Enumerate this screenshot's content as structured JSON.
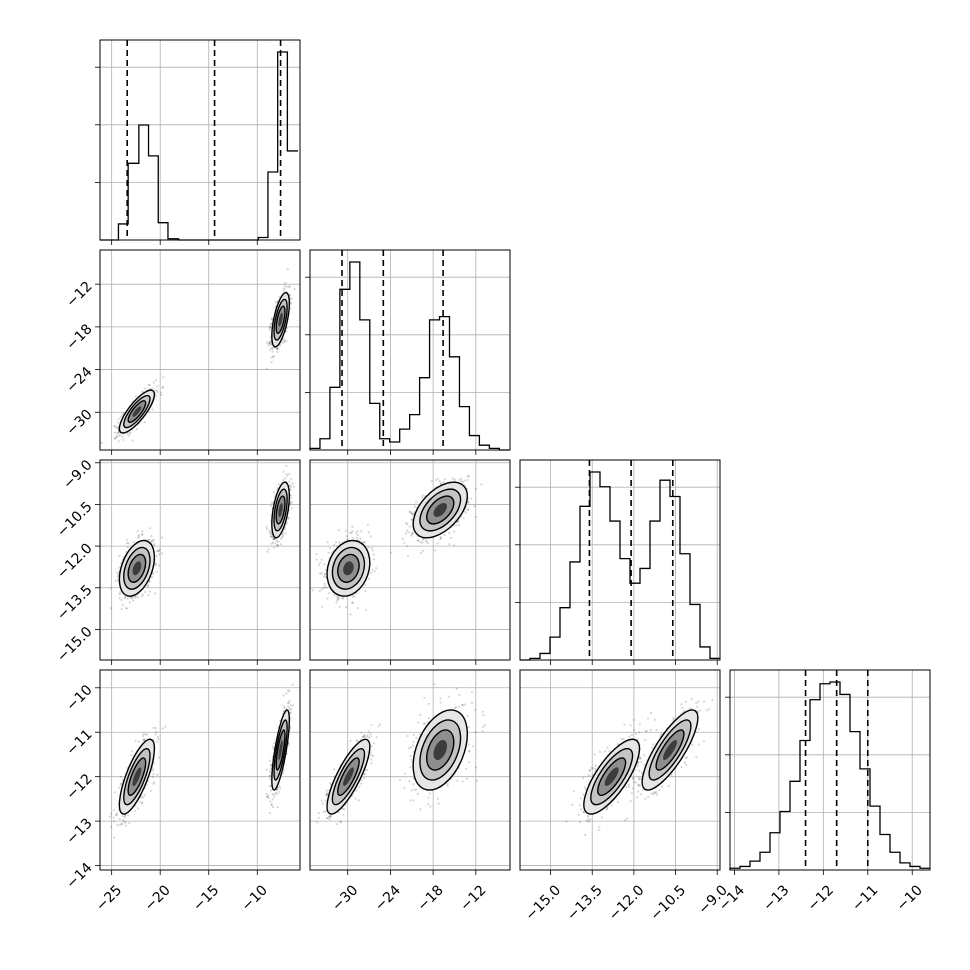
{
  "chart_data": {
    "type": "corner",
    "title": "",
    "n_params": 4,
    "params": [
      {
        "range": [
          -26.2,
          -5.6
        ],
        "ticks": [
          -25,
          -20,
          -15,
          -10
        ],
        "tick_labels": [
          "−25",
          "−20",
          "−15",
          "−10"
        ],
        "quantiles": [
          -23.4,
          -14.4,
          -7.6
        ],
        "hist": {
          "edges": [
            -26.2,
            -25.3,
            -24.3,
            -23.3,
            -22.2,
            -21.2,
            -20.2,
            -19.2,
            -18.1,
            -17.1,
            -16.1,
            -15.0,
            -14.0,
            -13.0,
            -12.0,
            -11.0,
            -9.9,
            -8.9,
            -7.9,
            -6.9,
            -5.8
          ],
          "counts": [
            0,
            0,
            0.13,
            0.62,
            0.93,
            0.68,
            0.14,
            0.01,
            0,
            0,
            0,
            0,
            0,
            0,
            0,
            0,
            0.02,
            0.55,
            1.52,
            0.72
          ]
        }
      },
      {
        "range": [
          -35.3,
          -7.2
        ],
        "ticks": [
          -30,
          -24,
          -18,
          -12
        ],
        "tick_labels": [
          "−30",
          "−24",
          "−18",
          "−12"
        ],
        "quantiles": [
          -30.8,
          -25.0,
          -16.6
        ],
        "hist": {
          "edges": [
            -35.3,
            -33.9,
            -32.5,
            -31.1,
            -29.7,
            -28.3,
            -26.9,
            -25.5,
            -24.1,
            -22.7,
            -21.3,
            -19.9,
            -18.5,
            -17.1,
            -15.7,
            -14.3,
            -12.9,
            -11.5,
            -10.1,
            -8.7,
            -7.3
          ],
          "counts": [
            0.01,
            0.07,
            0.39,
            1.0,
            1.17,
            0.81,
            0.29,
            0.07,
            0.05,
            0.13,
            0.22,
            0.45,
            0.81,
            0.83,
            0.58,
            0.27,
            0.09,
            0.03,
            0.01,
            0
          ]
        }
      },
      {
        "range": [
          -16.1,
          -8.9
        ],
        "ticks": [
          -15.0,
          -13.5,
          -12.0,
          -10.5,
          -9.0
        ],
        "tick_labels": [
          "−15.0",
          "−13.5",
          "−12.0",
          "−10.5",
          "−9.0"
        ],
        "quantiles": [
          -13.6,
          -12.1,
          -10.6
        ],
        "hist": {
          "edges": [
            -16.1,
            -15.74,
            -15.38,
            -15.02,
            -14.66,
            -14.3,
            -13.94,
            -13.58,
            -13.22,
            -12.86,
            -12.5,
            -12.14,
            -11.78,
            -11.42,
            -11.06,
            -10.7,
            -10.34,
            -9.98,
            -9.62,
            -9.26,
            -8.9
          ],
          "counts": [
            0,
            0.01,
            0.04,
            0.14,
            0.32,
            0.6,
            0.94,
            1.15,
            1.06,
            0.85,
            0.62,
            0.47,
            0.56,
            0.85,
            1.1,
            1.0,
            0.65,
            0.34,
            0.08,
            0.01
          ]
        }
      },
      {
        "range": [
          -14.1,
          -9.6
        ],
        "ticks": [
          -14,
          -13,
          -12,
          -11,
          -10
        ],
        "tick_labels": [
          "−14",
          "−13",
          "−12",
          "−11",
          "−10"
        ],
        "quantiles": [
          -12.4,
          -11.7,
          -11.0
        ],
        "hist": {
          "edges": [
            -14.1,
            -13.875,
            -13.65,
            -13.425,
            -13.2,
            -12.975,
            -12.75,
            -12.525,
            -12.3,
            -12.075,
            -11.85,
            -11.625,
            -11.4,
            -11.175,
            -10.95,
            -10.725,
            -10.5,
            -10.275,
            -10.05,
            -9.825,
            -9.6
          ],
          "counts": [
            0.01,
            0.02,
            0.05,
            0.1,
            0.21,
            0.33,
            0.5,
            0.73,
            0.96,
            1.05,
            1.06,
            0.99,
            0.78,
            0.57,
            0.36,
            0.2,
            0.1,
            0.04,
            0.02,
            0.01
          ]
        }
      }
    ],
    "modes": [
      {
        "mean": [
          -22.4,
          -29.9,
          -12.8,
          -12.0
        ],
        "sd": [
          0.9,
          1.5,
          0.5,
          0.42
        ],
        "corr": [
          [
            1,
            0.8,
            0.4,
            0.75
          ],
          [
            0.8,
            1,
            0.2,
            0.8
          ],
          [
            0.4,
            0.2,
            1,
            0.75
          ],
          [
            0.75,
            0.8,
            0.75,
            1
          ]
        ],
        "weight": 0.5
      },
      {
        "mean": [
          -7.6,
          -17.0,
          -10.7,
          -11.4
        ],
        "sd": [
          0.45,
          1.9,
          0.5,
          0.45
        ],
        "corr": [
          [
            1,
            0.6,
            0.5,
            0.75
          ],
          [
            0.6,
            1,
            0.5,
            0.4
          ],
          [
            0.5,
            0.5,
            1,
            0.8
          ],
          [
            0.75,
            0.4,
            0.8,
            1
          ]
        ],
        "weight": 0.5
      }
    ],
    "grid": true,
    "legend": "none"
  }
}
